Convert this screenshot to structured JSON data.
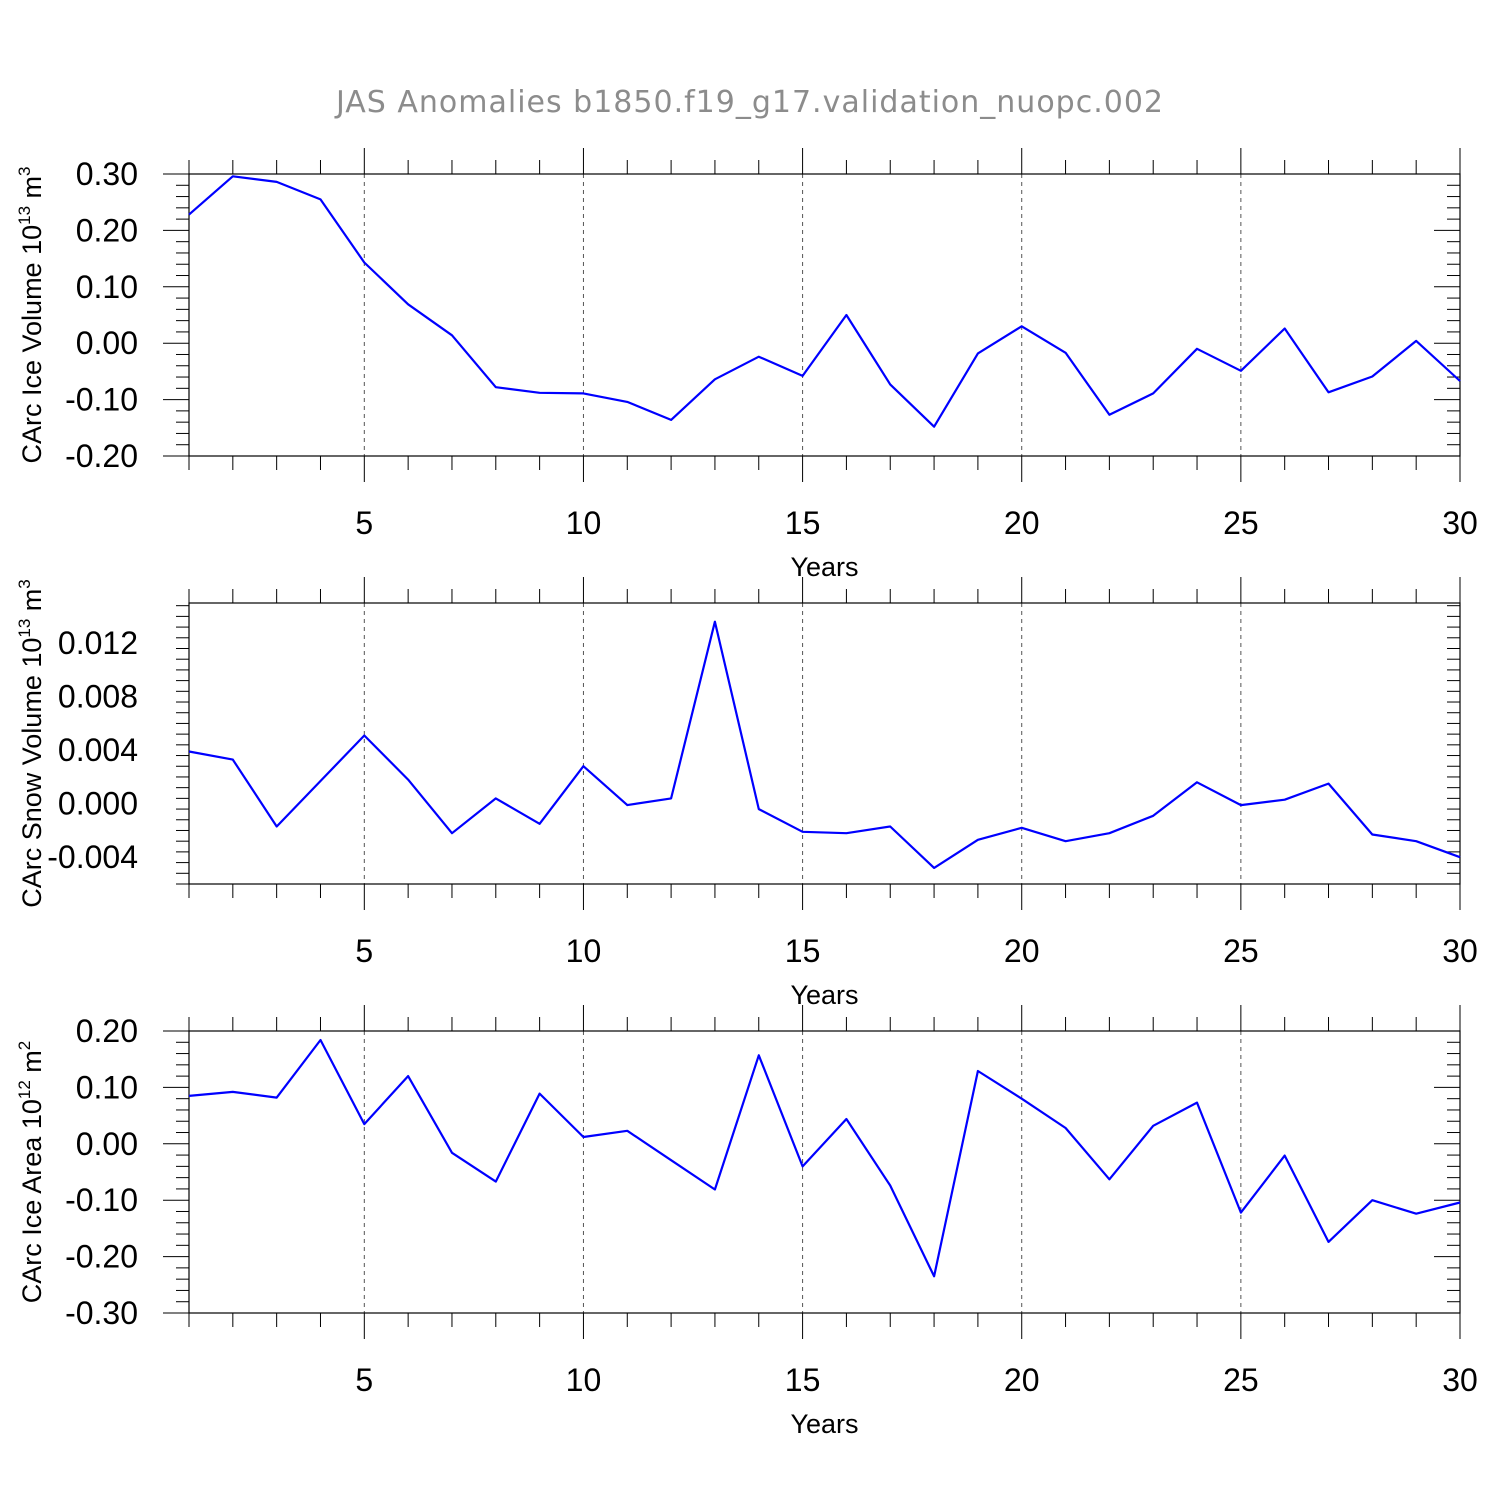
{
  "title": "JAS Anomalies b1850.f19_g17.validation_nuopc.002",
  "colors": {
    "series": "#0000ff",
    "title": "#8c8c8c"
  },
  "chart_data": [
    {
      "type": "line",
      "title": "",
      "xlabel": "Years",
      "ylabel": {
        "text": "CArc Ice Volume 10",
        "exp": "13",
        "unit": " m",
        "unit_exp": "3"
      },
      "xlim": [
        1,
        30
      ],
      "ylim": [
        -0.2,
        0.3
      ],
      "xticks": [
        5,
        10,
        15,
        20,
        25,
        30
      ],
      "yticks": [
        -0.2,
        -0.1,
        0.0,
        0.1,
        0.2,
        0.3
      ],
      "ytick_labels": [
        "-0.20",
        "-0.10",
        "0.00",
        "0.10",
        "0.20",
        "0.30"
      ],
      "grid": "vertical dashed at major x ticks",
      "x": [
        1,
        2,
        3,
        4,
        5,
        6,
        7,
        8,
        9,
        10,
        11,
        12,
        13,
        14,
        15,
        16,
        17,
        18,
        19,
        20,
        21,
        22,
        23,
        24,
        25,
        26,
        27,
        28,
        29,
        30
      ],
      "y": [
        0.228,
        0.296,
        0.286,
        0.255,
        0.143,
        0.069,
        0.014,
        -0.078,
        -0.088,
        -0.089,
        -0.104,
        -0.136,
        -0.064,
        -0.024,
        -0.058,
        0.05,
        -0.073,
        -0.148,
        -0.018,
        0.03,
        -0.017,
        -0.127,
        -0.089,
        -0.01,
        -0.049,
        0.026,
        -0.087,
        -0.059,
        0.004,
        -0.067
      ]
    },
    {
      "type": "line",
      "title": "",
      "xlabel": "Years",
      "ylabel": {
        "text": "CArc Snow Volume 10",
        "exp": "13",
        "unit": " m",
        "unit_exp": "3"
      },
      "xlim": [
        1,
        30
      ],
      "ylim": [
        -0.006,
        0.015
      ],
      "xticks": [
        5,
        10,
        15,
        20,
        25,
        30
      ],
      "yticks": [
        -0.004,
        0.0,
        0.004,
        0.008,
        0.012
      ],
      "ytick_labels": [
        "-0.004",
        "0.000",
        "0.004",
        "0.008",
        "0.012"
      ],
      "grid": "vertical dashed at major x ticks",
      "x": [
        1,
        2,
        3,
        4,
        5,
        6,
        7,
        8,
        9,
        10,
        11,
        12,
        13,
        14,
        15,
        16,
        17,
        18,
        19,
        20,
        21,
        22,
        23,
        24,
        25,
        26,
        27,
        28,
        29,
        30
      ],
      "y": [
        0.0039,
        0.0033,
        -0.0017,
        0.0017,
        0.0051,
        0.0018,
        -0.0022,
        0.0004,
        -0.0015,
        0.0028,
        -0.0001,
        0.0004,
        0.0136,
        -0.0004,
        -0.0021,
        -0.0022,
        -0.0017,
        -0.0048,
        -0.0027,
        -0.0018,
        -0.0028,
        -0.0022,
        -0.0009,
        0.0016,
        -0.0001,
        0.0003,
        0.0015,
        -0.0023,
        -0.0028,
        -0.004
      ]
    },
    {
      "type": "line",
      "title": "",
      "xlabel": "Years",
      "ylabel": {
        "text": "CArc Ice Area 10",
        "exp": "12",
        "unit": " m",
        "unit_exp": "2"
      },
      "xlim": [
        1,
        30
      ],
      "ylim": [
        -0.3,
        0.2
      ],
      "xticks": [
        5,
        10,
        15,
        20,
        25,
        30
      ],
      "yticks": [
        -0.3,
        -0.2,
        -0.1,
        0.0,
        0.1,
        0.2
      ],
      "ytick_labels": [
        "-0.30",
        "-0.20",
        "-0.10",
        "0.00",
        "0.10",
        "0.20"
      ],
      "grid": "vertical dashed at major x ticks",
      "x": [
        1,
        2,
        3,
        4,
        5,
        6,
        7,
        8,
        9,
        10,
        11,
        12,
        13,
        14,
        15,
        16,
        17,
        18,
        19,
        20,
        21,
        22,
        23,
        24,
        25,
        26,
        27,
        28,
        29,
        30
      ],
      "y": [
        0.085,
        0.092,
        0.082,
        0.184,
        0.035,
        0.12,
        -0.016,
        -0.067,
        0.089,
        0.012,
        0.023,
        -0.029,
        -0.081,
        0.157,
        -0.04,
        0.044,
        -0.074,
        -0.235,
        0.129,
        0.08,
        0.028,
        -0.063,
        0.032,
        0.073,
        -0.122,
        -0.021,
        -0.174,
        -0.1,
        -0.124,
        -0.104
      ]
    }
  ]
}
